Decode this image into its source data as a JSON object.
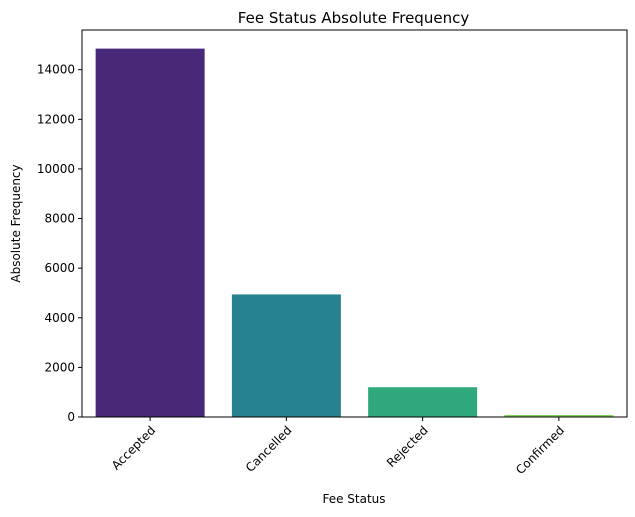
{
  "chart_data": {
    "type": "bar",
    "title": "Fee Status Absolute Frequency",
    "xlabel": "Fee Status",
    "ylabel": "Absolute Frequency",
    "categories": [
      "Accepted",
      "Cancelled",
      "Rejected",
      "Confirmed"
    ],
    "values": [
      14850,
      4940,
      1200,
      80
    ],
    "colors": [
      "#482878",
      "#26828e",
      "#2fa97b",
      "#7ad151"
    ],
    "ylim": [
      0,
      15600
    ],
    "yticks": [
      0,
      2000,
      4000,
      6000,
      8000,
      10000,
      12000,
      14000
    ],
    "ytick_labels": [
      "0",
      "2000",
      "4000",
      "6000",
      "8000",
      "10000",
      "12000",
      "14000"
    ],
    "grid": false,
    "legend": "none"
  }
}
